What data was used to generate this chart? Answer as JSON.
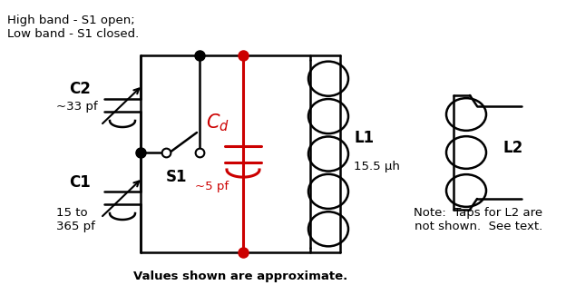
{
  "bg_color": "#ffffff",
  "black": "#000000",
  "red": "#cc0000",
  "text_top_left": "High band - S1 open;\nLow band - S1 closed.",
  "text_bottom": "Values shown are approximate.",
  "text_note": "Note:  Taps for L2 are\nnot shown.  See text.",
  "label_C2": "C2",
  "label_C2_val": "~33 pf",
  "label_C1": "C1",
  "label_C1_val": "15 to\n365 pf",
  "label_S1": "S1",
  "label_Cd_val": "~5 pf",
  "label_L1": "L1",
  "label_L1_val": "15.5 μh",
  "label_L2": "L2",
  "figw": 6.24,
  "figh": 3.36,
  "dpi": 100
}
